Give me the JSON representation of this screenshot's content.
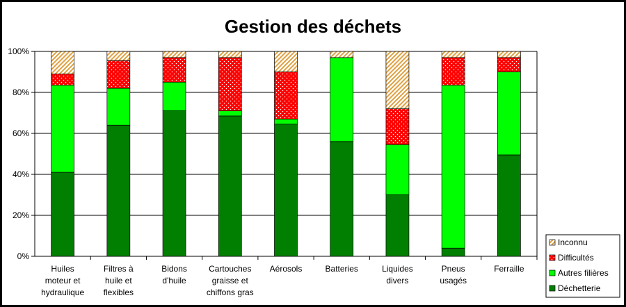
{
  "chart_data": {
    "type": "stacked_bar_percent",
    "title": "Gestion des déchets",
    "categories": [
      "Huiles\nmoteur et\nhydraulique",
      "Filtres à\nhuile et\nflexibles",
      "Bidons\nd'huile",
      "Cartouches\ngraisse et\nchiffons gras",
      "Aérosols",
      "Batteries",
      "Liquides\ndivers",
      "Pneus\nusagés",
      "Ferraille"
    ],
    "series": [
      {
        "name": "Déchetterie",
        "color": "#007f00",
        "pattern": "solid",
        "values": [
          41,
          64,
          71,
          68.5,
          64.5,
          56,
          30,
          4,
          49.5
        ]
      },
      {
        "name": "Autres filières",
        "color": "#00ff00",
        "pattern": "solid",
        "values": [
          42.5,
          18,
          14,
          2.5,
          2.5,
          41,
          24.5,
          79.5,
          40.5
        ]
      },
      {
        "name": "Difficultés",
        "color": "#ff0000",
        "pattern": "dots",
        "values": [
          5.5,
          13.5,
          12,
          26,
          23,
          0,
          17.5,
          13.5,
          7
        ]
      },
      {
        "name": "Inconnu",
        "color": "#e0a040",
        "pattern": "hatch",
        "values": [
          11,
          4.5,
          3,
          3,
          10,
          3,
          28,
          3,
          3
        ]
      }
    ],
    "ylim": [
      0,
      100
    ],
    "yticks": [
      {
        "value": 0,
        "label": "0%"
      },
      {
        "value": 20,
        "label": "20%"
      },
      {
        "value": 40,
        "label": "40%"
      },
      {
        "value": 60,
        "label": "60%"
      },
      {
        "value": 80,
        "label": "80%"
      },
      {
        "value": 100,
        "label": "100%"
      }
    ],
    "grid": true,
    "legend": "right"
  }
}
